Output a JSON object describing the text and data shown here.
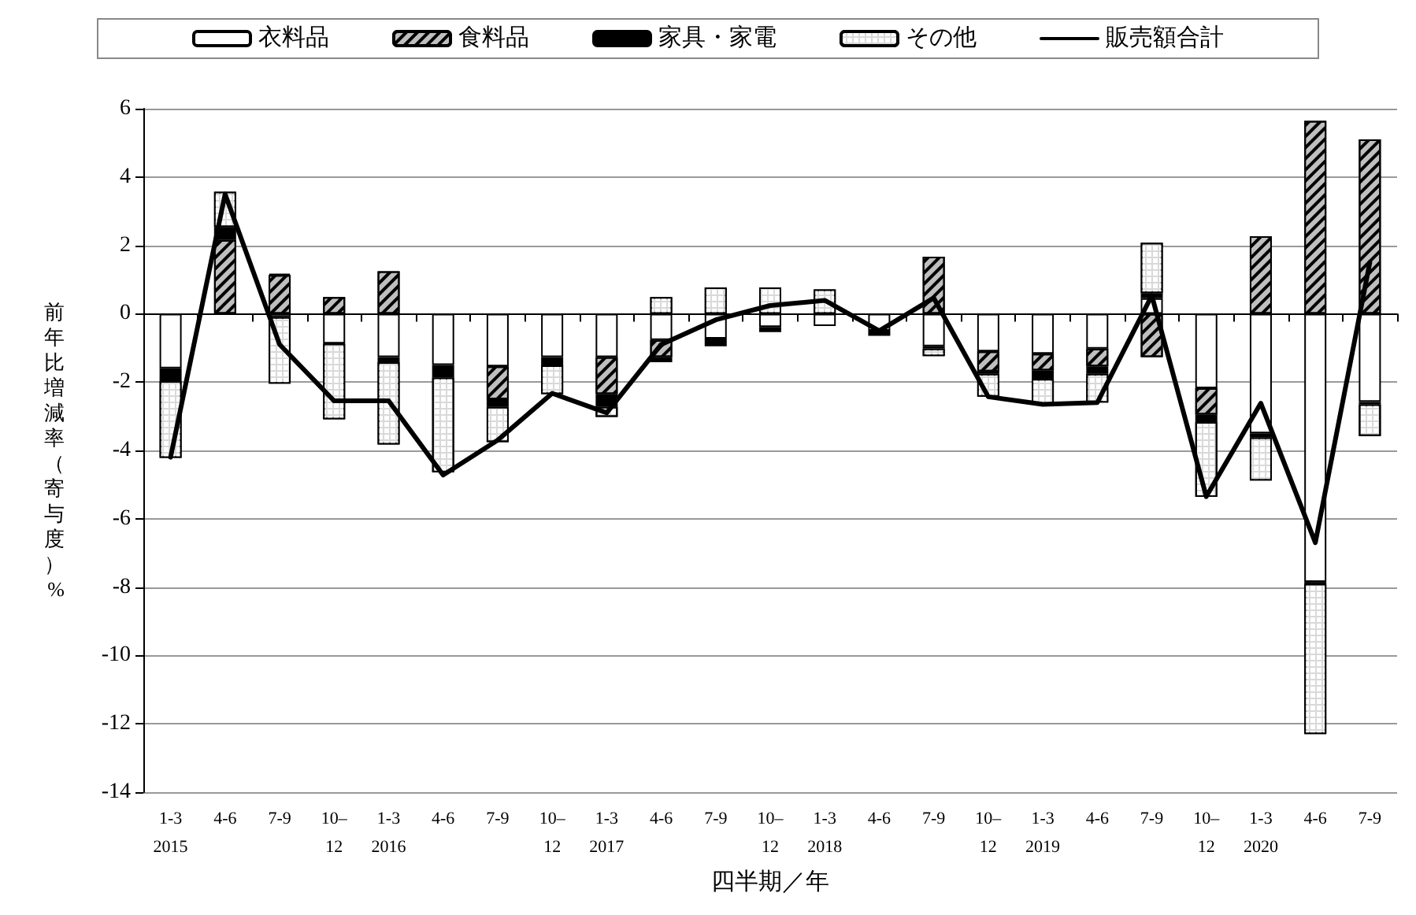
{
  "chart_data": {
    "type": "bar",
    "stacked": true,
    "xlabel": "四半期／年",
    "ylabel": "前年比増減率（寄与度）%",
    "categories": [
      "1-3\n2015",
      "4-6",
      "7-9",
      "10–\n12",
      "1-3\n2016",
      "4-6",
      "7-9",
      "10–\n12",
      "1-3\n2017",
      "4-6",
      "7-9",
      "10–\n12",
      "1-3\n2018",
      "4-6",
      "7-9",
      "10–\n12",
      "1-3\n2019",
      "4-6",
      "7-9",
      "10–\n12",
      "1-3\n2020",
      "4-6",
      "7-9"
    ],
    "series": [
      {
        "name": "衣料品",
        "color": "#ffffff",
        "values": [
          -1.6,
          null,
          -0.1,
          -0.87,
          -1.27,
          -1.5,
          -1.54,
          -1.27,
          -1.27,
          -0.77,
          -0.73,
          -0.39,
          -0.36,
          -0.5,
          -0.95,
          -1.1,
          -1.17,
          -1.02,
          0.45,
          -2.18,
          -3.5,
          -7.85,
          -2.58
        ]
      },
      {
        "name": "食料品",
        "color": "#bfbfbf",
        "values": [
          null,
          2.16,
          1.13,
          0.49,
          1.24,
          null,
          -0.96,
          null,
          -1.08,
          -0.5,
          null,
          null,
          null,
          null,
          1.67,
          -0.59,
          -0.49,
          -0.52,
          -1.27,
          -0.77,
          2.27,
          5.64,
          5.1
        ]
      },
      {
        "name": "家具・家電",
        "color": "#000000",
        "values": [
          -0.37,
          0.37,
          0.04,
          null,
          -0.15,
          -0.37,
          -0.22,
          -0.24,
          -0.37,
          -0.15,
          -0.22,
          -0.15,
          null,
          -0.15,
          -0.07,
          -0.07,
          -0.25,
          -0.22,
          0.15,
          -0.22,
          -0.12,
          -0.05,
          -0.07
        ]
      },
      {
        "name": "その他",
        "color": "#d9d9d9",
        "values": [
          -2.25,
          1.04,
          -1.95,
          -2.22,
          -2.41,
          -2.77,
          -1.04,
          -0.84,
          -0.3,
          0.49,
          0.77,
          0.77,
          0.71,
          null,
          -0.22,
          -0.67,
          -0.74,
          -0.84,
          1.48,
          -2.19,
          -1.26,
          -4.4,
          -0.93
        ]
      },
      {
        "name": "販売額合計",
        "type": "line",
        "color": "#000000",
        "values": [
          -4.2,
          3.5,
          -0.9,
          -2.55,
          -2.55,
          -4.72,
          -3.7,
          -2.33,
          -2.9,
          -0.9,
          -0.18,
          0.24,
          0.39,
          -0.5,
          0.46,
          -2.43,
          -2.65,
          -2.6,
          0.53,
          -5.35,
          -2.62,
          -6.7,
          1.5
        ]
      }
    ],
    "ylim": [
      -14,
      6
    ],
    "yticks": [
      -14,
      -12,
      -10,
      -8,
      -6,
      -4,
      -2,
      0,
      2,
      4,
      6
    ],
    "grid": "y",
    "legend": "top",
    "marker": "none",
    "line_style": "solid"
  }
}
